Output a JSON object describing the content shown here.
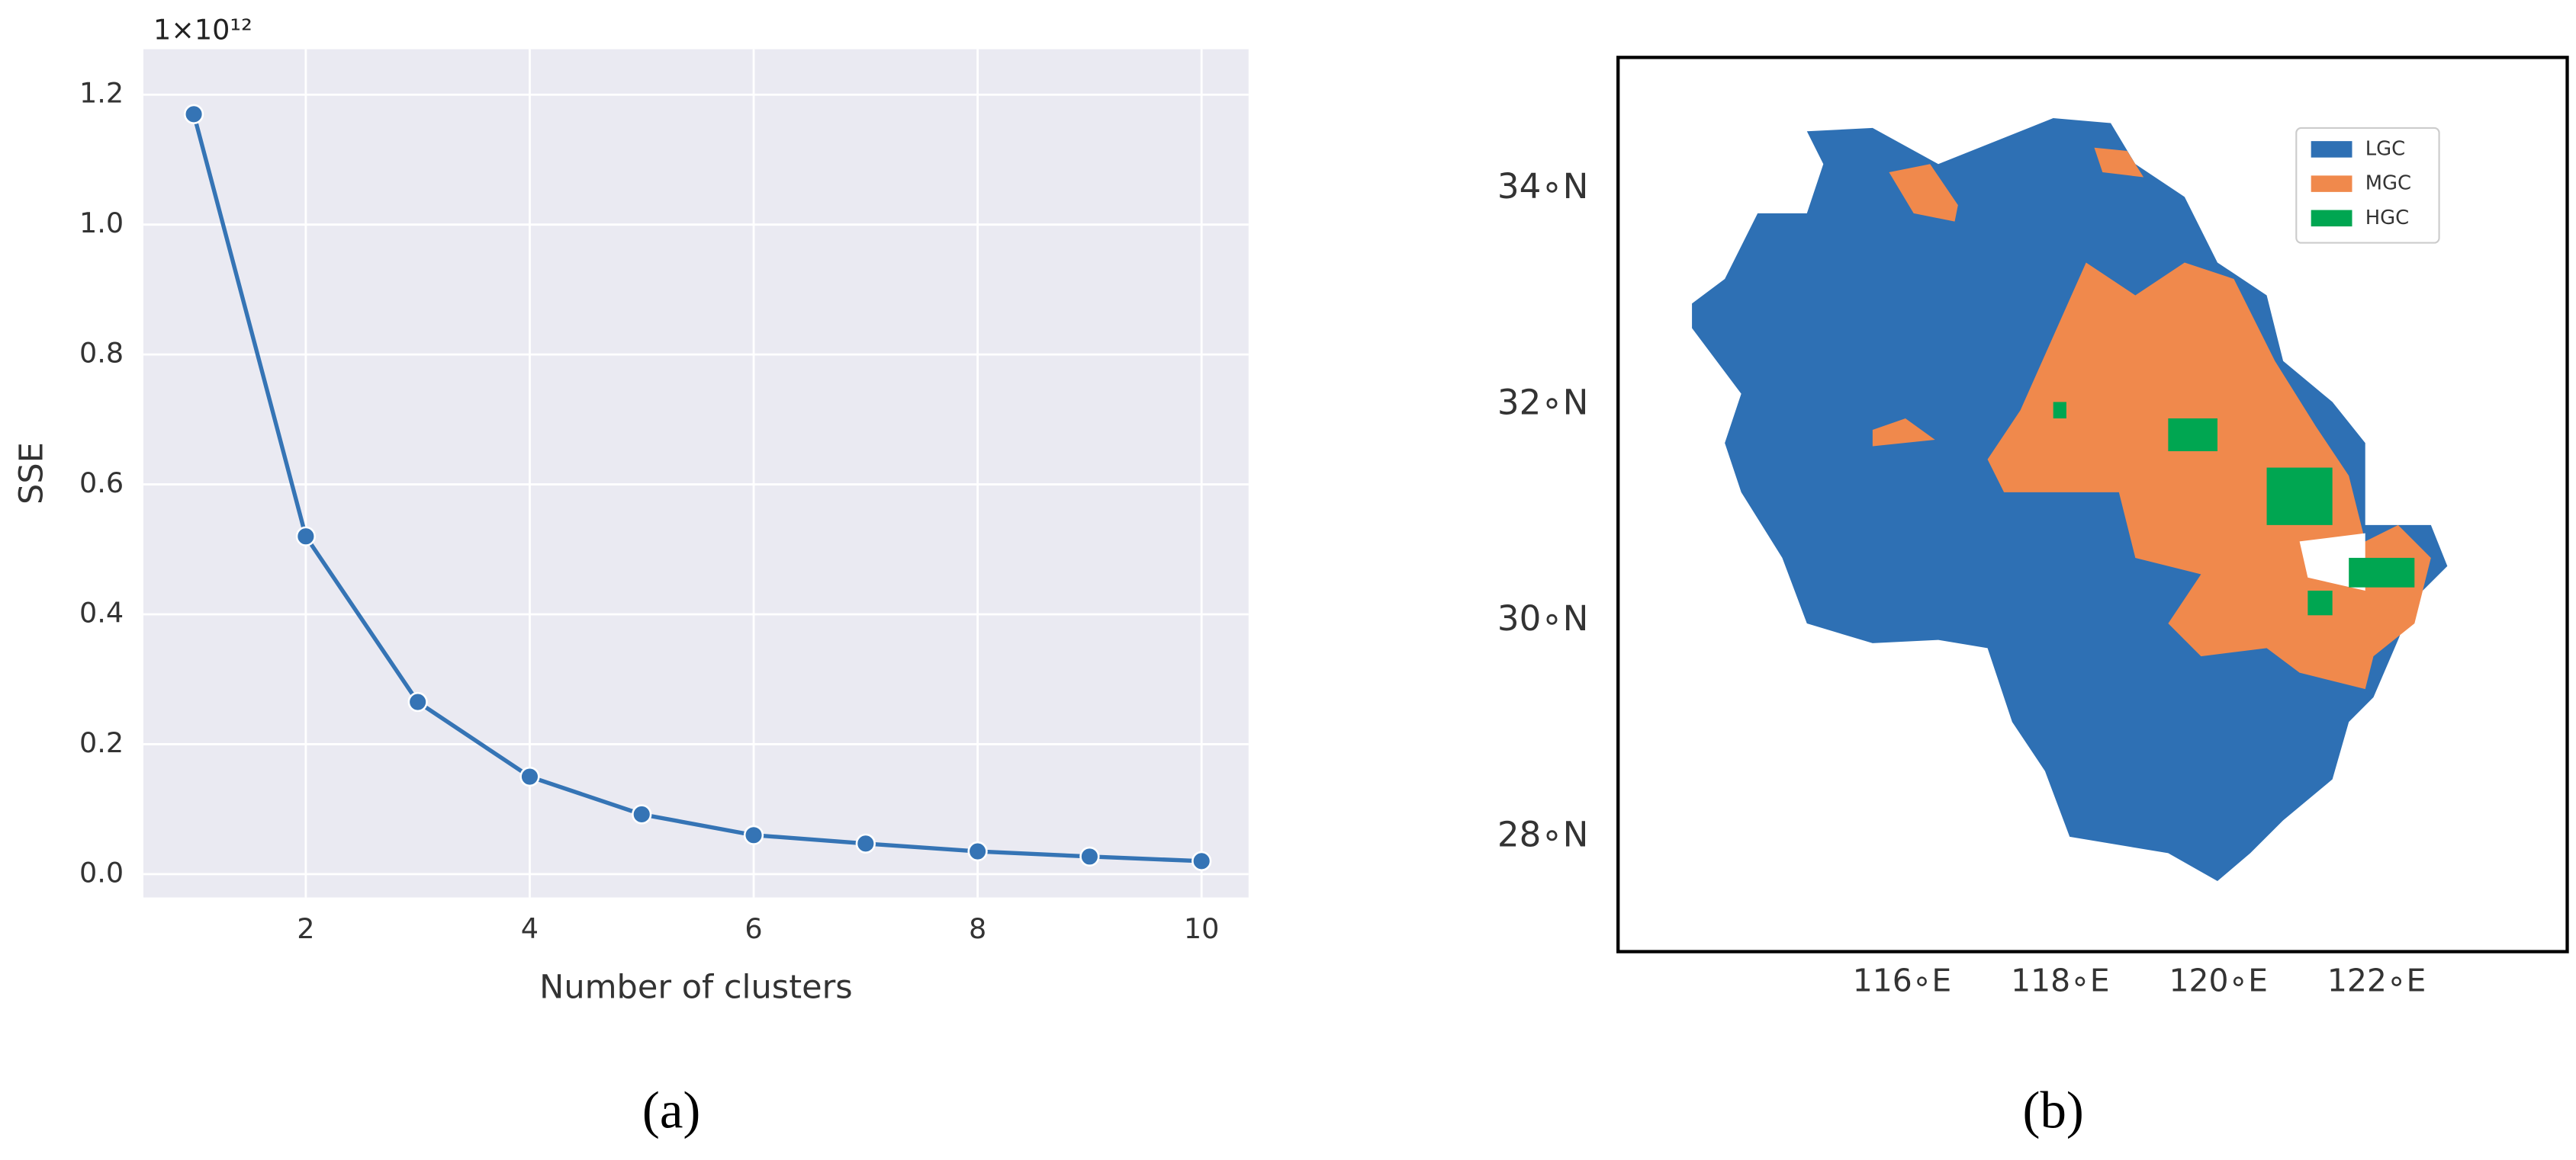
{
  "chart_data": [
    {
      "type": "line",
      "caption": "(a)",
      "x_label": "Number of clusters",
      "y_label": "SSE",
      "y_offset_label": "1×10¹²",
      "x": [
        1,
        2,
        3,
        4,
        5,
        6,
        7,
        8,
        9,
        10
      ],
      "values": [
        1.17,
        0.52,
        0.265,
        0.15,
        0.092,
        0.06,
        0.047,
        0.035,
        0.027,
        0.02
      ],
      "color": "#3574b5",
      "xlim": [
        0.55,
        10.42
      ],
      "ylim": [
        -0.036,
        1.27
      ],
      "xticks": [
        2,
        4,
        6,
        8,
        10
      ],
      "yticks": [
        {
          "value": 0,
          "label": "0.0"
        },
        0.2,
        0.4,
        0.6,
        0.8,
        {
          "value": 1,
          "label": "1.0"
        },
        1.2
      ],
      "grid": true
    },
    {
      "type": "map",
      "caption": "(b)",
      "xlim": [
        112.41,
        124.41
      ],
      "ylim": [
        26.94,
        35.22
      ],
      "xticks": [
        {
          "value": 116,
          "label": "116∘E"
        },
        {
          "value": 118,
          "label": "118∘E"
        },
        {
          "value": 120,
          "label": "120∘E"
        },
        {
          "value": 122,
          "label": "122∘E"
        }
      ],
      "yticks": [
        {
          "value": 28,
          "label": "28∘N"
        },
        {
          "value": 30,
          "label": "30∘N"
        },
        {
          "value": 32,
          "label": "32∘N"
        },
        {
          "value": 34,
          "label": "34∘N"
        }
      ],
      "legend": "upper right",
      "series": [
        {
          "name": "LGC",
          "color": "#2e70b4"
        },
        {
          "name": "MGC",
          "color": "#f0894c"
        },
        {
          "name": "HGC",
          "color": "#00a651"
        }
      ]
    }
  ]
}
